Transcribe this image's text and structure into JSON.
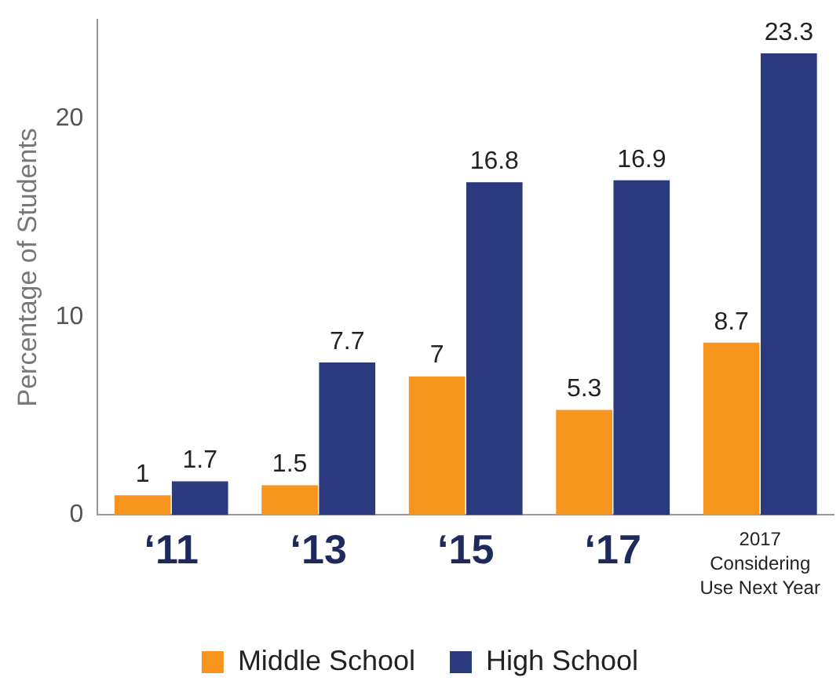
{
  "chart_data": {
    "type": "bar",
    "ylabel": "Percentage of Students",
    "categories": [
      "‘11",
      "‘13",
      "‘15",
      "‘17",
      "2017\nConsidering\nUse Next Year"
    ],
    "series": [
      {
        "name": "Middle School",
        "color": "#f7941d",
        "values": [
          1,
          1.5,
          7,
          5.3,
          8.7
        ]
      },
      {
        "name": "High School",
        "color": "#2b3a7e",
        "values": [
          1.7,
          7.7,
          16.8,
          16.9,
          23.3
        ]
      }
    ],
    "ylim": [
      0,
      25
    ],
    "yticks": [
      0,
      10,
      20
    ],
    "grid": false,
    "legend": "bottom",
    "data_labels": true
  }
}
